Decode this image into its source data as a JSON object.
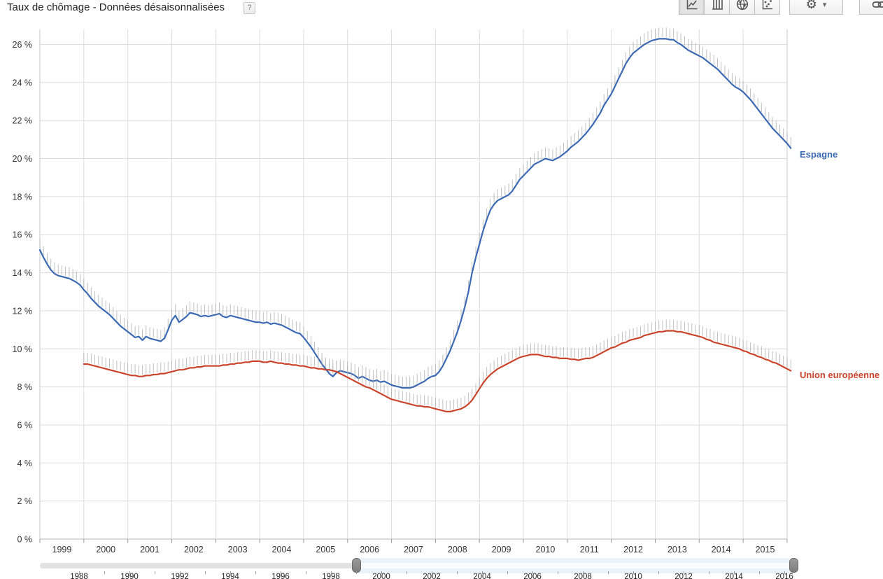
{
  "header": {
    "title": "Taux de chômage - Données désaisonnalisées",
    "help_badge": "?"
  },
  "toolbar": {
    "chart_type_buttons": [
      {
        "name": "line-chart",
        "selected": true
      },
      {
        "name": "bar-chart",
        "selected": false
      },
      {
        "name": "map-chart",
        "selected": false
      },
      {
        "name": "scatter-chart",
        "selected": false
      }
    ],
    "settings_caret": "▾",
    "settings_glyph": "⚙"
  },
  "chart_data": {
    "type": "line",
    "title": "Taux de chômage - Données désaisonnalisées",
    "grid": true,
    "point_tick_marks": true,
    "legend_position": "end-of-line",
    "y_axis": {
      "tick_values": [
        0,
        2,
        4,
        6,
        8,
        10,
        12,
        14,
        16,
        18,
        20,
        22,
        24,
        26
      ],
      "tick_labels": [
        "0 %",
        "2 %",
        "4 %",
        "6 %",
        "8 %",
        "10 %",
        "12 %",
        "14 %",
        "16 %",
        "18 %",
        "20 %",
        "22 %",
        "24 %",
        "26 %"
      ],
      "ylim": [
        0,
        26.8
      ]
    },
    "x_axis": {
      "tick_labels": [
        "1999",
        "2000",
        "2001",
        "2002",
        "2003",
        "2004",
        "2005",
        "2006",
        "2007",
        "2008",
        "2009",
        "2010",
        "2011",
        "2012",
        "2013",
        "2014",
        "2015"
      ],
      "range": [
        1999,
        2016.1
      ]
    },
    "series": [
      {
        "name": "Espagne",
        "color": "#3b69b4",
        "start_year": 1999,
        "frequency": "monthly",
        "values": [
          15.2,
          14.8,
          14.45,
          14.15,
          13.95,
          13.85,
          13.8,
          13.75,
          13.7,
          13.6,
          13.5,
          13.35,
          13.1,
          12.9,
          12.65,
          12.45,
          12.25,
          12.1,
          11.95,
          11.8,
          11.6,
          11.4,
          11.2,
          11.05,
          10.9,
          10.75,
          10.6,
          10.65,
          10.45,
          10.65,
          10.55,
          10.5,
          10.45,
          10.4,
          10.55,
          11.0,
          11.5,
          11.75,
          11.4,
          11.55,
          11.7,
          11.9,
          11.85,
          11.8,
          11.7,
          11.75,
          11.7,
          11.75,
          11.8,
          11.85,
          11.7,
          11.65,
          11.75,
          11.7,
          11.65,
          11.6,
          11.55,
          11.5,
          11.45,
          11.4,
          11.4,
          11.35,
          11.4,
          11.3,
          11.35,
          11.3,
          11.25,
          11.15,
          11.05,
          10.95,
          10.85,
          10.8,
          10.6,
          10.35,
          10.1,
          9.8,
          9.5,
          9.2,
          8.95,
          8.7,
          8.55,
          8.75,
          8.85,
          8.8,
          8.75,
          8.7,
          8.6,
          8.45,
          8.55,
          8.45,
          8.35,
          8.3,
          8.35,
          8.25,
          8.3,
          8.2,
          8.1,
          8.05,
          8.0,
          7.95,
          7.95,
          7.95,
          8.0,
          8.1,
          8.2,
          8.3,
          8.45,
          8.55,
          8.6,
          8.8,
          9.1,
          9.5,
          9.9,
          10.4,
          10.9,
          11.5,
          12.2,
          13.0,
          14.0,
          14.8,
          15.5,
          16.2,
          16.8,
          17.3,
          17.6,
          17.8,
          17.9,
          18.0,
          18.1,
          18.3,
          18.6,
          18.9,
          19.1,
          19.3,
          19.5,
          19.7,
          19.8,
          19.9,
          20.0,
          19.95,
          19.9,
          20.0,
          20.1,
          20.25,
          20.4,
          20.6,
          20.75,
          20.9,
          21.1,
          21.3,
          21.55,
          21.8,
          22.1,
          22.4,
          22.8,
          23.1,
          23.4,
          23.8,
          24.2,
          24.6,
          25.0,
          25.3,
          25.55,
          25.7,
          25.85,
          26.0,
          26.1,
          26.2,
          26.25,
          26.3,
          26.3,
          26.3,
          26.25,
          26.25,
          26.1,
          26.0,
          25.85,
          25.7,
          25.6,
          25.5,
          25.4,
          25.3,
          25.15,
          25.0,
          24.85,
          24.7,
          24.5,
          24.3,
          24.1,
          23.9,
          23.75,
          23.65,
          23.5,
          23.3,
          23.1,
          22.85,
          22.6,
          22.35,
          22.1,
          21.85,
          21.6,
          21.4,
          21.2,
          21.0,
          20.8,
          20.55
        ]
      },
      {
        "name": "Union européenne",
        "color": "#c9442a",
        "start_year": 2000,
        "frequency": "monthly",
        "values": [
          9.2,
          9.2,
          9.15,
          9.1,
          9.05,
          9.0,
          8.95,
          8.9,
          8.85,
          8.8,
          8.75,
          8.7,
          8.65,
          8.6,
          8.6,
          8.55,
          8.55,
          8.6,
          8.6,
          8.65,
          8.65,
          8.7,
          8.7,
          8.75,
          8.8,
          8.85,
          8.9,
          8.9,
          8.95,
          9.0,
          9.0,
          9.05,
          9.05,
          9.1,
          9.1,
          9.1,
          9.1,
          9.1,
          9.15,
          9.15,
          9.2,
          9.2,
          9.25,
          9.25,
          9.3,
          9.3,
          9.35,
          9.35,
          9.35,
          9.3,
          9.3,
          9.35,
          9.3,
          9.25,
          9.25,
          9.2,
          9.2,
          9.15,
          9.15,
          9.1,
          9.1,
          9.05,
          9.0,
          9.0,
          8.95,
          8.95,
          8.9,
          8.9,
          8.85,
          8.8,
          8.7,
          8.6,
          8.5,
          8.4,
          8.3,
          8.2,
          8.1,
          8.0,
          7.95,
          7.85,
          7.75,
          7.65,
          7.55,
          7.45,
          7.35,
          7.3,
          7.25,
          7.2,
          7.15,
          7.1,
          7.05,
          7.0,
          7.0,
          6.95,
          6.95,
          6.9,
          6.85,
          6.8,
          6.75,
          6.7,
          6.7,
          6.75,
          6.8,
          6.85,
          6.95,
          7.1,
          7.3,
          7.6,
          7.9,
          8.2,
          8.45,
          8.65,
          8.8,
          8.95,
          9.05,
          9.15,
          9.25,
          9.35,
          9.45,
          9.55,
          9.6,
          9.65,
          9.7,
          9.7,
          9.7,
          9.65,
          9.6,
          9.6,
          9.55,
          9.55,
          9.5,
          9.5,
          9.5,
          9.45,
          9.45,
          9.4,
          9.45,
          9.5,
          9.5,
          9.55,
          9.65,
          9.75,
          9.85,
          9.95,
          10.05,
          10.1,
          10.2,
          10.3,
          10.35,
          10.45,
          10.5,
          10.55,
          10.6,
          10.7,
          10.75,
          10.8,
          10.85,
          10.9,
          10.9,
          10.95,
          10.95,
          10.95,
          10.9,
          10.9,
          10.85,
          10.8,
          10.75,
          10.7,
          10.65,
          10.6,
          10.5,
          10.45,
          10.35,
          10.3,
          10.25,
          10.2,
          10.15,
          10.1,
          10.05,
          10.0,
          9.9,
          9.85,
          9.75,
          9.7,
          9.6,
          9.55,
          9.45,
          9.4,
          9.3,
          9.25,
          9.15,
          9.05,
          8.95,
          8.85
        ]
      }
    ]
  },
  "timeline": {
    "range_start": 1988,
    "range_end": 2016.4,
    "selected_start": 1999,
    "selected_end": 2016.35,
    "year_labels": [
      "1988",
      "1990",
      "1992",
      "1994",
      "1996",
      "1998",
      "2000",
      "2002",
      "2004",
      "2006",
      "2008",
      "2010",
      "2012",
      "2014",
      "2016"
    ]
  }
}
